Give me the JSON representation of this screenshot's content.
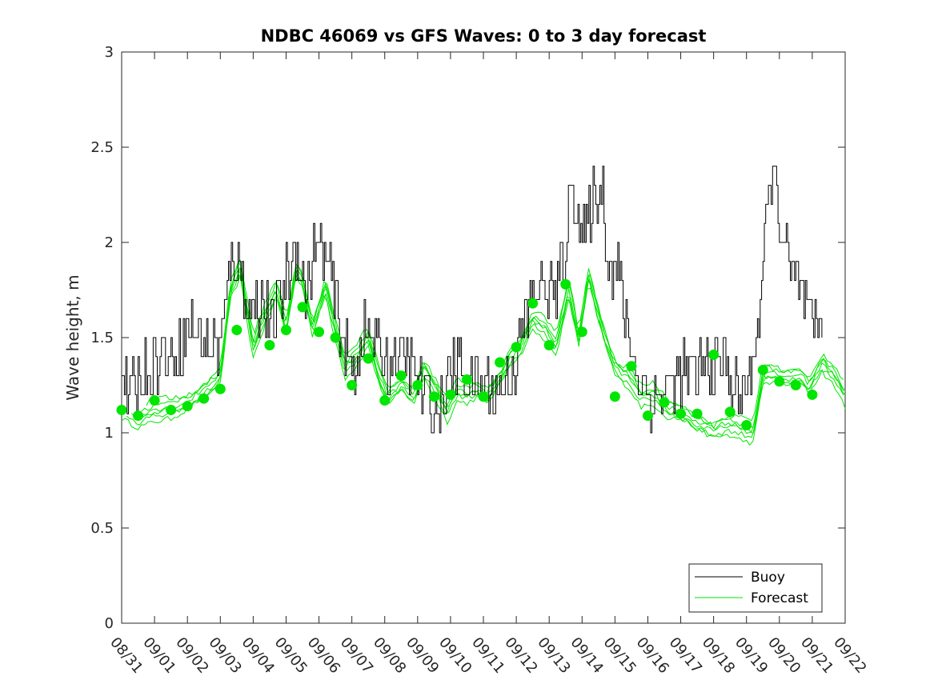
{
  "chart_data": {
    "type": "line",
    "title": "NDBC 46069 vs GFS Waves: 0 to 3 day forecast",
    "xlabel": "",
    "ylabel": "Wave height, m",
    "ylim": [
      0,
      3
    ],
    "yticks": [
      0,
      0.5,
      1,
      1.5,
      2,
      2.5,
      3
    ],
    "ytick_labels": [
      "0",
      "0.5",
      "1",
      "1.5",
      "2",
      "2.5",
      "3"
    ],
    "xlim": [
      0,
      22
    ],
    "xtick_labels": [
      "08/31",
      "09/01",
      "09/02",
      "09/03",
      "09/04",
      "09/05",
      "09/06",
      "09/07",
      "09/08",
      "09/09",
      "09/10",
      "09/11",
      "09/12",
      "09/13",
      "09/14",
      "09/15",
      "09/16",
      "09/17",
      "09/18",
      "09/19",
      "09/20",
      "09/21",
      "09/22"
    ],
    "grid": false,
    "legend": {
      "location": "bottom-right",
      "entries": [
        "Buoy",
        "Forecast"
      ]
    },
    "colors": {
      "buoy": "#000000",
      "forecast": "#00e600",
      "axis": "#262626"
    },
    "buoy_keypoints": {
      "x": [
        0,
        0.3,
        0.7,
        1.2,
        1.6,
        2.0,
        2.5,
        2.9,
        3.1,
        3.4,
        3.6,
        3.9,
        4.2,
        4.6,
        4.9,
        5.3,
        5.6,
        5.9,
        6.3,
        6.7,
        7.0,
        7.3,
        7.7,
        8.0,
        8.4,
        8.8,
        9.2,
        9.6,
        9.9,
        10.3,
        10.7,
        11.0,
        11.4,
        11.8,
        12.0,
        12.3,
        12.6,
        12.9,
        13.2,
        13.5,
        13.7,
        14.0,
        14.3,
        14.6,
        14.8,
        15.1,
        15.4,
        15.7,
        16.0,
        16.4,
        16.8,
        17.2,
        17.6,
        18.0,
        18.4,
        18.8,
        19.1,
        19.4,
        19.6,
        19.8,
        20.1,
        20.4,
        20.7,
        21.0,
        21.3
      ],
      "y": [
        1.3,
        1.2,
        1.35,
        1.4,
        1.4,
        1.55,
        1.5,
        1.45,
        1.6,
        1.95,
        1.85,
        1.65,
        1.7,
        1.55,
        1.75,
        2.0,
        1.7,
        2.0,
        1.85,
        1.5,
        1.3,
        1.5,
        1.5,
        1.35,
        1.4,
        1.35,
        1.2,
        1.1,
        1.3,
        1.35,
        1.25,
        1.25,
        1.2,
        1.3,
        1.4,
        1.6,
        1.8,
        1.75,
        1.75,
        2.0,
        2.35,
        2.0,
        2.2,
        2.3,
        1.9,
        1.85,
        1.5,
        1.3,
        1.2,
        1.2,
        1.3,
        1.3,
        1.35,
        1.35,
        1.35,
        1.15,
        1.3,
        1.65,
        2.1,
        2.4,
        2.0,
        1.8,
        1.7,
        1.5,
        1.6
      ]
    },
    "forecast_markers": {
      "x": [
        0,
        0.5,
        1.0,
        1.5,
        2.0,
        2.5,
        3.0,
        3.5,
        4.5,
        5.0,
        5.5,
        6.0,
        6.5,
        7.0,
        7.5,
        8.0,
        8.5,
        9.0,
        9.5,
        10.0,
        10.5,
        11.0,
        11.5,
        12.0,
        12.5,
        13.0,
        13.5,
        14.0,
        15.0,
        15.5,
        16.0,
        16.5,
        17.0,
        17.5,
        18.0,
        18.5,
        19.0,
        19.5,
        20.0,
        20.5,
        21.0
      ],
      "y": [
        1.12,
        1.09,
        1.17,
        1.12,
        1.14,
        1.18,
        1.23,
        1.54,
        1.46,
        1.54,
        1.66,
        1.53,
        1.5,
        1.25,
        1.39,
        1.17,
        1.3,
        1.25,
        1.19,
        1.2,
        1.28,
        1.19,
        1.37,
        1.45,
        1.68,
        1.46,
        1.78,
        1.53,
        1.19,
        1.35,
        1.09,
        1.16,
        1.1,
        1.1,
        1.41,
        1.11,
        1.04,
        1.33,
        1.27,
        1.25,
        1.2
      ]
    },
    "forecast_keypoints": {
      "x": [
        0,
        0.5,
        1.0,
        1.5,
        2.0,
        2.5,
        3.0,
        3.3,
        3.6,
        4.0,
        4.2,
        4.7,
        5.0,
        5.3,
        5.5,
        5.8,
        6.2,
        6.4,
        6.8,
        7.1,
        7.5,
        7.8,
        8.1,
        8.5,
        8.9,
        9.2,
        9.6,
        9.9,
        10.2,
        10.5,
        10.8,
        11.1,
        11.5,
        11.8,
        12.1,
        12.5,
        12.9,
        13.2,
        13.6,
        13.9,
        14.2,
        14.4,
        14.7,
        15.0,
        15.4,
        15.8,
        16.2,
        16.6,
        17.0,
        17.5,
        18.0,
        18.4,
        18.9,
        19.2,
        19.5,
        19.8,
        20.2,
        20.6,
        20.9,
        21.3,
        21.7,
        22.0
      ],
      "y": [
        1.12,
        1.09,
        1.12,
        1.12,
        1.15,
        1.22,
        1.3,
        1.75,
        1.88,
        1.45,
        1.55,
        1.75,
        1.55,
        1.85,
        1.8,
        1.55,
        1.78,
        1.62,
        1.35,
        1.4,
        1.5,
        1.3,
        1.18,
        1.25,
        1.2,
        1.35,
        1.22,
        1.12,
        1.22,
        1.2,
        1.22,
        1.18,
        1.28,
        1.4,
        1.45,
        1.6,
        1.55,
        1.45,
        1.75,
        1.48,
        1.83,
        1.68,
        1.5,
        1.35,
        1.3,
        1.2,
        1.2,
        1.12,
        1.1,
        1.05,
        1.02,
        1.05,
        1.02,
        1.0,
        1.3,
        1.3,
        1.28,
        1.3,
        1.25,
        1.38,
        1.3,
        1.2
      ]
    },
    "forecast_runs": 6
  }
}
